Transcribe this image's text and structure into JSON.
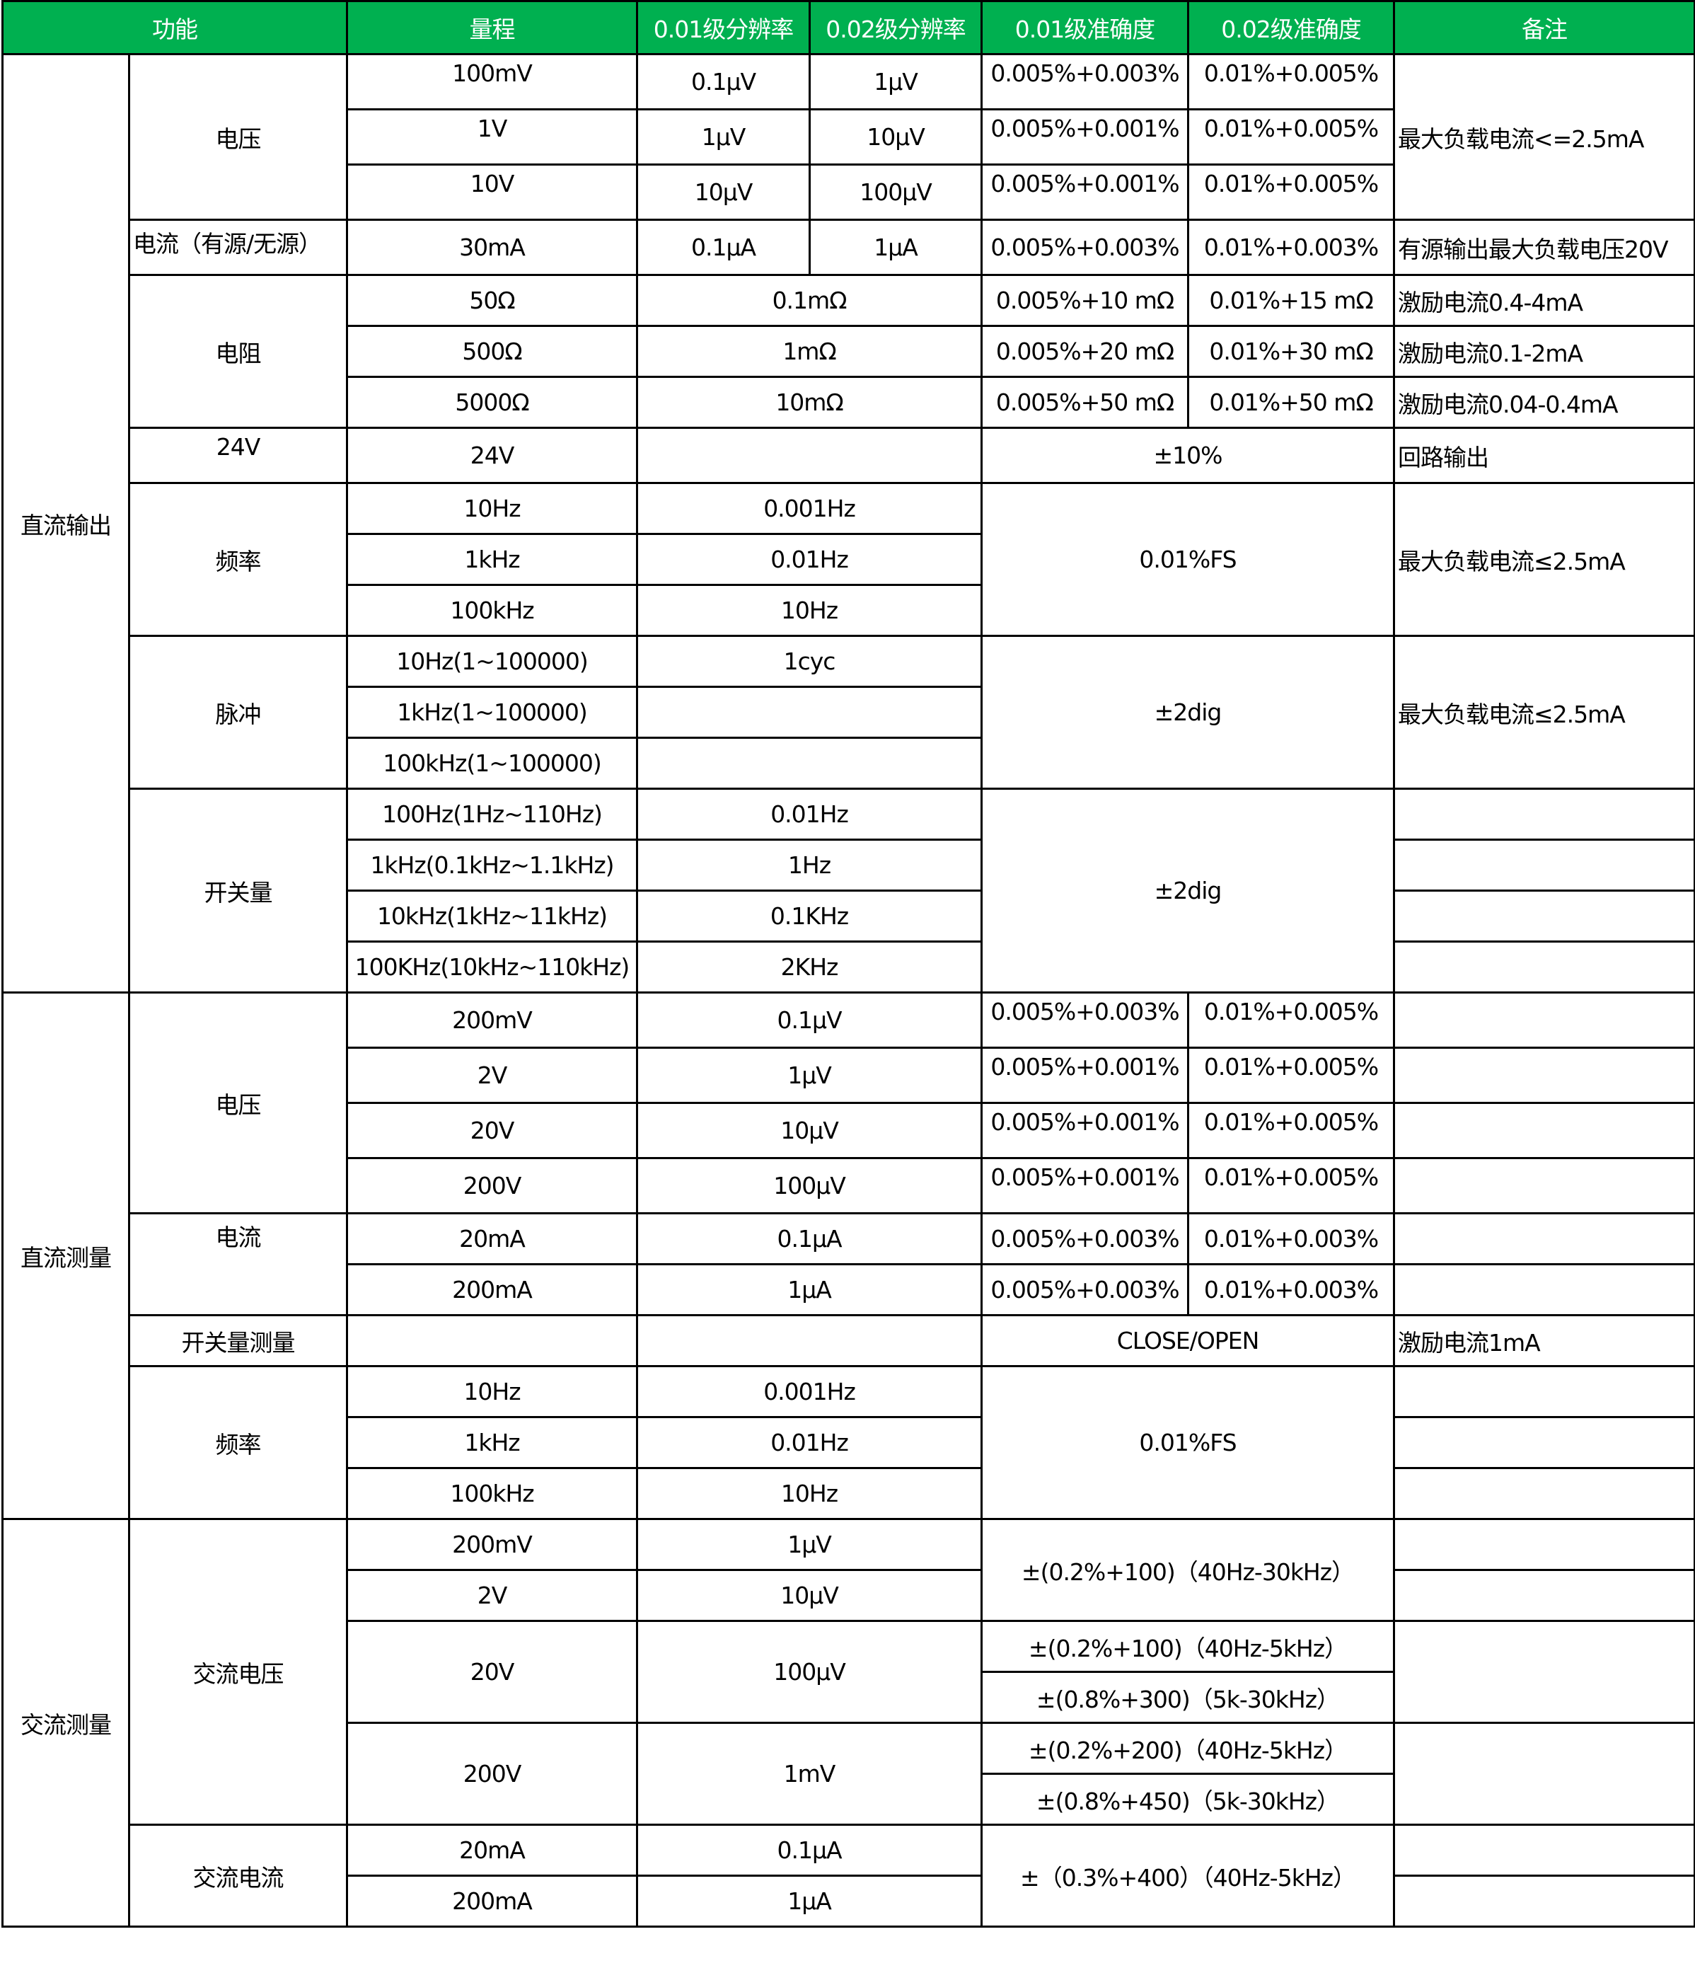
{
  "header": [
    "功能",
    "量程",
    "0.01级分辨率",
    "0.02级分辨率",
    "0.01级准确度",
    "0.02级准确度",
    "备注"
  ],
  "colors": {
    "header_bg": "#00b050",
    "header_text": "#ffffff",
    "border": "#000000"
  },
  "rows": [
    [
      "直流输出",
      "电压",
      "100mV",
      "0.1μV",
      "1μV",
      "0.005%+0.003%",
      "0.01%+0.005%",
      "最大负载电流<=2.5mA"
    ],
    [
      "1V",
      "1μV",
      "10μV",
      "0.005%+0.001%",
      "0.01%+0.005%"
    ],
    [
      "10V",
      "10μV",
      "100μV",
      "0.005%+0.001%",
      "0.01%+0.005%"
    ],
    [
      "电流（有源/无源）",
      "30mA",
      "0.1μA",
      "1μA",
      "0.005%+0.003%",
      "0.01%+0.003%",
      "有源输出最大负载电压20V"
    ],
    [
      "电阻",
      "50Ω",
      "0.1mΩ",
      "0.005%+10 mΩ",
      "0.01%+15 mΩ",
      "激励电流0.4-4mA"
    ],
    [
      "500Ω",
      "1mΩ",
      "0.005%+20 mΩ",
      "0.01%+30 mΩ",
      "激励电流0.1-2mA"
    ],
    [
      "5000Ω",
      "10mΩ",
      "0.005%+50 mΩ",
      "0.01%+50 mΩ",
      "激励电流0.04-0.4mA"
    ],
    [
      "24V",
      "24V",
      "",
      "±10%",
      "回路输出"
    ],
    [
      "频率",
      "10Hz",
      "0.001Hz",
      "0.01%FS",
      "最大负载电流≤2.5mA"
    ],
    [
      "1kHz",
      "0.01Hz"
    ],
    [
      "100kHz",
      "10Hz"
    ],
    [
      "脉冲",
      "10Hz(1~100000)",
      "1cyc",
      "±2dig",
      "最大负载电流≤2.5mA"
    ],
    [
      "1kHz(1~100000)",
      ""
    ],
    [
      "100kHz(1~100000)",
      ""
    ],
    [
      "开关量",
      "100Hz(1Hz~110Hz)",
      "0.01Hz",
      "±2dig",
      ""
    ],
    [
      "1kHz(0.1kHz~1.1kHz)",
      "1Hz",
      ""
    ],
    [
      "10kHz(1kHz~11kHz)",
      "0.1KHz",
      ""
    ],
    [
      "100KHz(10kHz~110kHz)",
      "2KHz",
      ""
    ],
    [
      "直流测量",
      "电压",
      "200mV",
      "0.1μV",
      "0.005%+0.003%",
      "0.01%+0.005%",
      ""
    ],
    [
      "2V",
      "1μV",
      "0.005%+0.001%",
      "0.01%+0.005%",
      ""
    ],
    [
      "20V",
      "10μV",
      "0.005%+0.001%",
      "0.01%+0.005%",
      ""
    ],
    [
      "200V",
      "100μV",
      "0.005%+0.001%",
      "0.01%+0.005%",
      ""
    ],
    [
      "电流",
      "20mA",
      "0.1μA",
      "0.005%+0.003%",
      "0.01%+0.003%",
      ""
    ],
    [
      "200mA",
      "1μA",
      "0.005%+0.003%",
      "0.01%+0.003%",
      ""
    ],
    [
      "开关量测量",
      "",
      "",
      "CLOSE/OPEN",
      "激励电流1mA"
    ],
    [
      "频率",
      "10Hz",
      "0.001Hz",
      "0.01%FS",
      ""
    ],
    [
      "1kHz",
      "0.01Hz",
      ""
    ],
    [
      "100kHz",
      "10Hz",
      ""
    ],
    [
      "交流测量",
      "交流电压",
      "200mV",
      "1μV",
      "±(0.2%+100)（40Hz-30kHz）",
      ""
    ],
    [
      "2V",
      "10μV",
      ""
    ],
    [
      "20V",
      "100μV",
      "±(0.2%+100)（40Hz-5kHz）",
      ""
    ],
    [
      "±(0.8%+300)（5k-30kHz）"
    ],
    [
      "200V",
      "1mV",
      "±(0.2%+200)（40Hz-5kHz）",
      ""
    ],
    [
      "±(0.8%+450)（5k-30kHz）"
    ],
    [
      "交流电流",
      "20mA",
      "0.1μA",
      "±（0.3%+400）（40Hz-5kHz）",
      ""
    ],
    [
      "200mA",
      "1μA",
      ""
    ]
  ]
}
